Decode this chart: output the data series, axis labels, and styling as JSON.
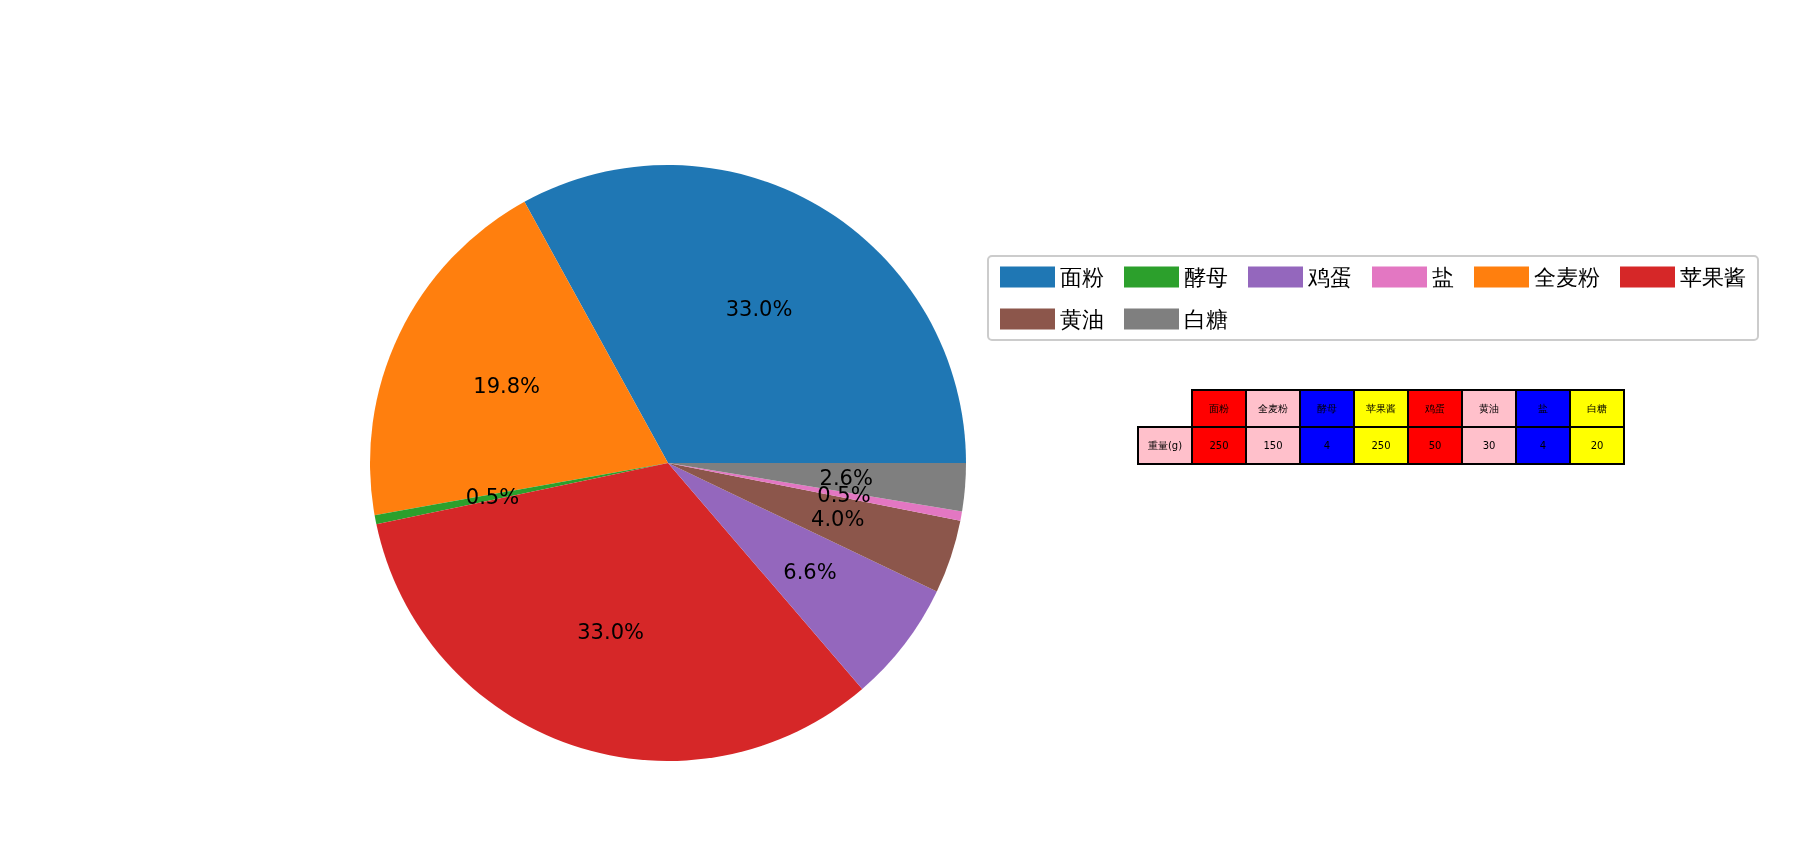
{
  "chart_data": [
    {
      "type": "pie",
      "categories": [
        "面粉",
        "全麦粉",
        "酵母",
        "苹果酱",
        "鸡蛋",
        "黄油",
        "盐",
        "白糖"
      ],
      "values": [
        33.0,
        19.8,
        0.5,
        33.0,
        6.6,
        4.0,
        0.5,
        2.6
      ],
      "colors": [
        "#1f77b4",
        "#ff7f0e",
        "#2ca02c",
        "#d62728",
        "#9467bd",
        "#8c564b",
        "#e377c2",
        "#7f7f7f"
      ],
      "value_labels": [
        "33.0%",
        "19.8%",
        "0.5%",
        "33.0%",
        "6.6%",
        "4.0%",
        "0.5%",
        "2.6%"
      ],
      "legend": "right"
    },
    {
      "type": "other",
      "categories": [
        "面粉",
        "全麦粉",
        "酵母",
        "苹果酱",
        "鸡蛋",
        "黄油",
        "盐",
        "白糖"
      ],
      "ylabel": "重量(g)",
      "values": [
        250,
        150,
        4,
        250,
        50,
        30,
        4,
        20
      ],
      "data_labels": true
    }
  ]
}
